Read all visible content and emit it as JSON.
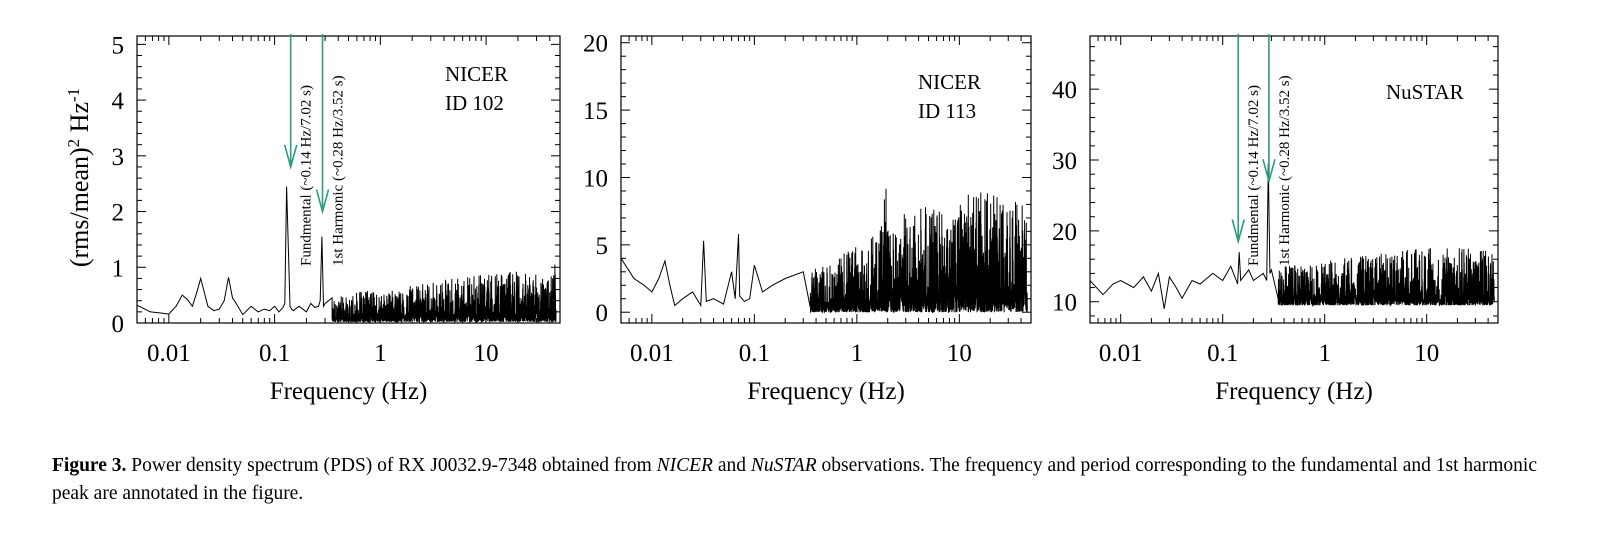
{
  "chart_data": [
    {
      "type": "line",
      "panel": "left",
      "xlabel": "Frequency (Hz)",
      "ylabel": "(rms/mean)2 Hz-1",
      "ylabel_parts": {
        "base": "(rms/mean)",
        "sup1": "2",
        "mid": " Hz",
        "sup2": "-1"
      },
      "xscale": "log",
      "xlim": [
        0.005,
        50
      ],
      "ylim": [
        0,
        5.15
      ],
      "xticks": [
        0.01,
        0.1,
        1,
        10
      ],
      "xtick_labels": [
        "0.01",
        "0.1",
        "1",
        "10"
      ],
      "yticks": [
        0,
        1,
        2,
        3,
        4,
        5
      ],
      "ytick_labels": [
        "0",
        "1",
        "2",
        "3",
        "4",
        "5"
      ],
      "ytick_side": "left",
      "grid": false,
      "label_lines": [
        "NICER",
        "ID 102"
      ],
      "color": "#000000",
      "series": [
        {
          "x": [
            0.005,
            0.0067,
            0.0084,
            0.01,
            0.0117,
            0.0134,
            0.015,
            0.0167,
            0.0184,
            0.02,
            0.0234,
            0.0267,
            0.03,
            0.0334,
            0.0367,
            0.04,
            0.0434,
            0.05,
            0.06,
            0.07,
            0.08,
            0.09,
            0.1,
            0.11,
            0.12,
            0.125,
            0.13,
            0.14,
            0.145,
            0.15,
            0.17,
            0.2,
            0.22,
            0.24,
            0.26,
            0.27,
            0.28,
            0.29,
            0.3,
            0.35,
            0.4,
            0.5,
            0.6,
            0.8,
            1,
            1.5,
            2,
            3,
            5,
            8,
            12,
            20,
            30,
            45
          ],
          "y": [
            0.32,
            0.2,
            0.18,
            0.16,
            0.3,
            0.5,
            0.42,
            0.3,
            0.55,
            0.8,
            0.3,
            0.22,
            0.25,
            0.4,
            0.82,
            0.45,
            0.35,
            0.15,
            0.3,
            0.2,
            0.25,
            0.22,
            0.3,
            0.2,
            0.28,
            0.35,
            2.45,
            0.3,
            0.25,
            0.22,
            0.3,
            0.2,
            0.35,
            0.28,
            0.3,
            0.4,
            1.55,
            0.3,
            0.35,
            0.45,
            0.5,
            0.45,
            0.55,
            0.6,
            0.5,
            0.65,
            0.7,
            0.75,
            0.8,
            0.85,
            0.9,
            0.95,
            1.0,
            1.05
          ]
        }
      ],
      "arrows": [
        {
          "x": 0.142,
          "y_from": 5.15,
          "y_to": 2.8,
          "label": "Fundmental (~0.14 Hz/7.02 s)"
        },
        {
          "x": 0.284,
          "y_from": 5.15,
          "y_to": 2.0,
          "label": "1st Harmonic (~0.28 Hz/3.52 s)"
        }
      ]
    },
    {
      "type": "line",
      "panel": "middle",
      "xlabel": "Frequency (Hz)",
      "xscale": "log",
      "xlim": [
        0.005,
        50
      ],
      "ylim": [
        -0.8,
        20.5
      ],
      "xticks": [
        0.01,
        0.1,
        1,
        10
      ],
      "xtick_labels": [
        "0.01",
        "0.1",
        "1",
        "10"
      ],
      "yticks": [
        0,
        5,
        10,
        15,
        20
      ],
      "ytick_labels": [
        "0",
        "5",
        "10",
        "15",
        "20"
      ],
      "ytick_side": "left",
      "grid": false,
      "label_lines": [
        "NICER",
        "ID 113"
      ],
      "color": "#000000",
      "series": [
        {
          "x": [
            0.005,
            0.0067,
            0.0084,
            0.01,
            0.0117,
            0.0134,
            0.015,
            0.0167,
            0.02,
            0.025,
            0.03,
            0.032,
            0.034,
            0.04,
            0.05,
            0.06,
            0.065,
            0.07,
            0.072,
            0.08,
            0.09,
            0.1,
            0.12,
            0.15,
            0.2,
            0.3,
            0.5,
            0.8,
            1,
            1.5,
            1.8,
            1.9,
            2,
            2.5,
            3,
            5,
            8,
            12,
            20,
            30,
            45
          ],
          "y": [
            4.0,
            2.5,
            2.0,
            1.5,
            2.5,
            3.8,
            2.0,
            0.5,
            1.0,
            1.5,
            0.5,
            5.3,
            0.8,
            1.0,
            0.6,
            3.0,
            1.0,
            5.8,
            1.2,
            0.8,
            1.0,
            3.5,
            1.5,
            2.0,
            2.5,
            3.0,
            3.5,
            4.5,
            5.0,
            6.0,
            7.0,
            10.8,
            6.5,
            7.0,
            7.5,
            8.0,
            8.5,
            9.0,
            9.5,
            8.5,
            8.0
          ]
        }
      ]
    },
    {
      "type": "line",
      "panel": "right",
      "xlabel": "Frequency (Hz)",
      "xscale": "log",
      "xlim": [
        0.005,
        50
      ],
      "ylim": [
        7,
        47.5
      ],
      "xticks": [
        0.01,
        0.1,
        1,
        10
      ],
      "xtick_labels": [
        "0.01",
        "0.1",
        "1",
        "10"
      ],
      "yticks": [
        10,
        20,
        30,
        40
      ],
      "ytick_labels": [
        "10",
        "20",
        "30",
        "40"
      ],
      "ytick_side": "left",
      "grid": false,
      "label_lines": [
        "NuSTAR"
      ],
      "color": "#000000",
      "series": [
        {
          "x": [
            0.005,
            0.0067,
            0.0084,
            0.01,
            0.0134,
            0.0167,
            0.02,
            0.0234,
            0.0267,
            0.03,
            0.035,
            0.04,
            0.05,
            0.06,
            0.08,
            0.1,
            0.12,
            0.14,
            0.145,
            0.15,
            0.18,
            0.2,
            0.25,
            0.27,
            0.28,
            0.29,
            0.3,
            0.4,
            0.6,
            1,
            2,
            4,
            8,
            15,
            30,
            45
          ],
          "y": [
            13.0,
            11.0,
            12.5,
            13.0,
            12.0,
            13.5,
            11.5,
            14.0,
            9.0,
            13.5,
            12.0,
            10.5,
            13.0,
            12.5,
            14.0,
            13.0,
            15.0,
            12.5,
            17.0,
            13.0,
            14.5,
            13.0,
            14.0,
            13.0,
            29.5,
            14.0,
            14.5,
            15.5,
            15.0,
            16.0,
            16.5,
            17.0,
            17.5,
            18.0,
            17.5,
            17.0
          ]
        }
      ],
      "arrows": [
        {
          "x": 0.142,
          "y_from": 47.5,
          "y_to": 18.5,
          "label": "Fundmental (~0.14 Hz/7.02 s)"
        },
        {
          "x": 0.284,
          "y_from": 47.5,
          "y_to": 27.0,
          "label": "1st Harmonic (~0.28 Hz/3.52 s)"
        }
      ]
    }
  ],
  "caption": {
    "label": "Figure 3.",
    "text1": " Power density spectrum (PDS) of RX J0032.9-7348 obtained from ",
    "em1": "NICER",
    "text2": " and ",
    "em2": "NuSTAR",
    "text3": " observations. The frequency and period corresponding to the fundamental and 1st harmonic peak are annotated in the figure."
  }
}
